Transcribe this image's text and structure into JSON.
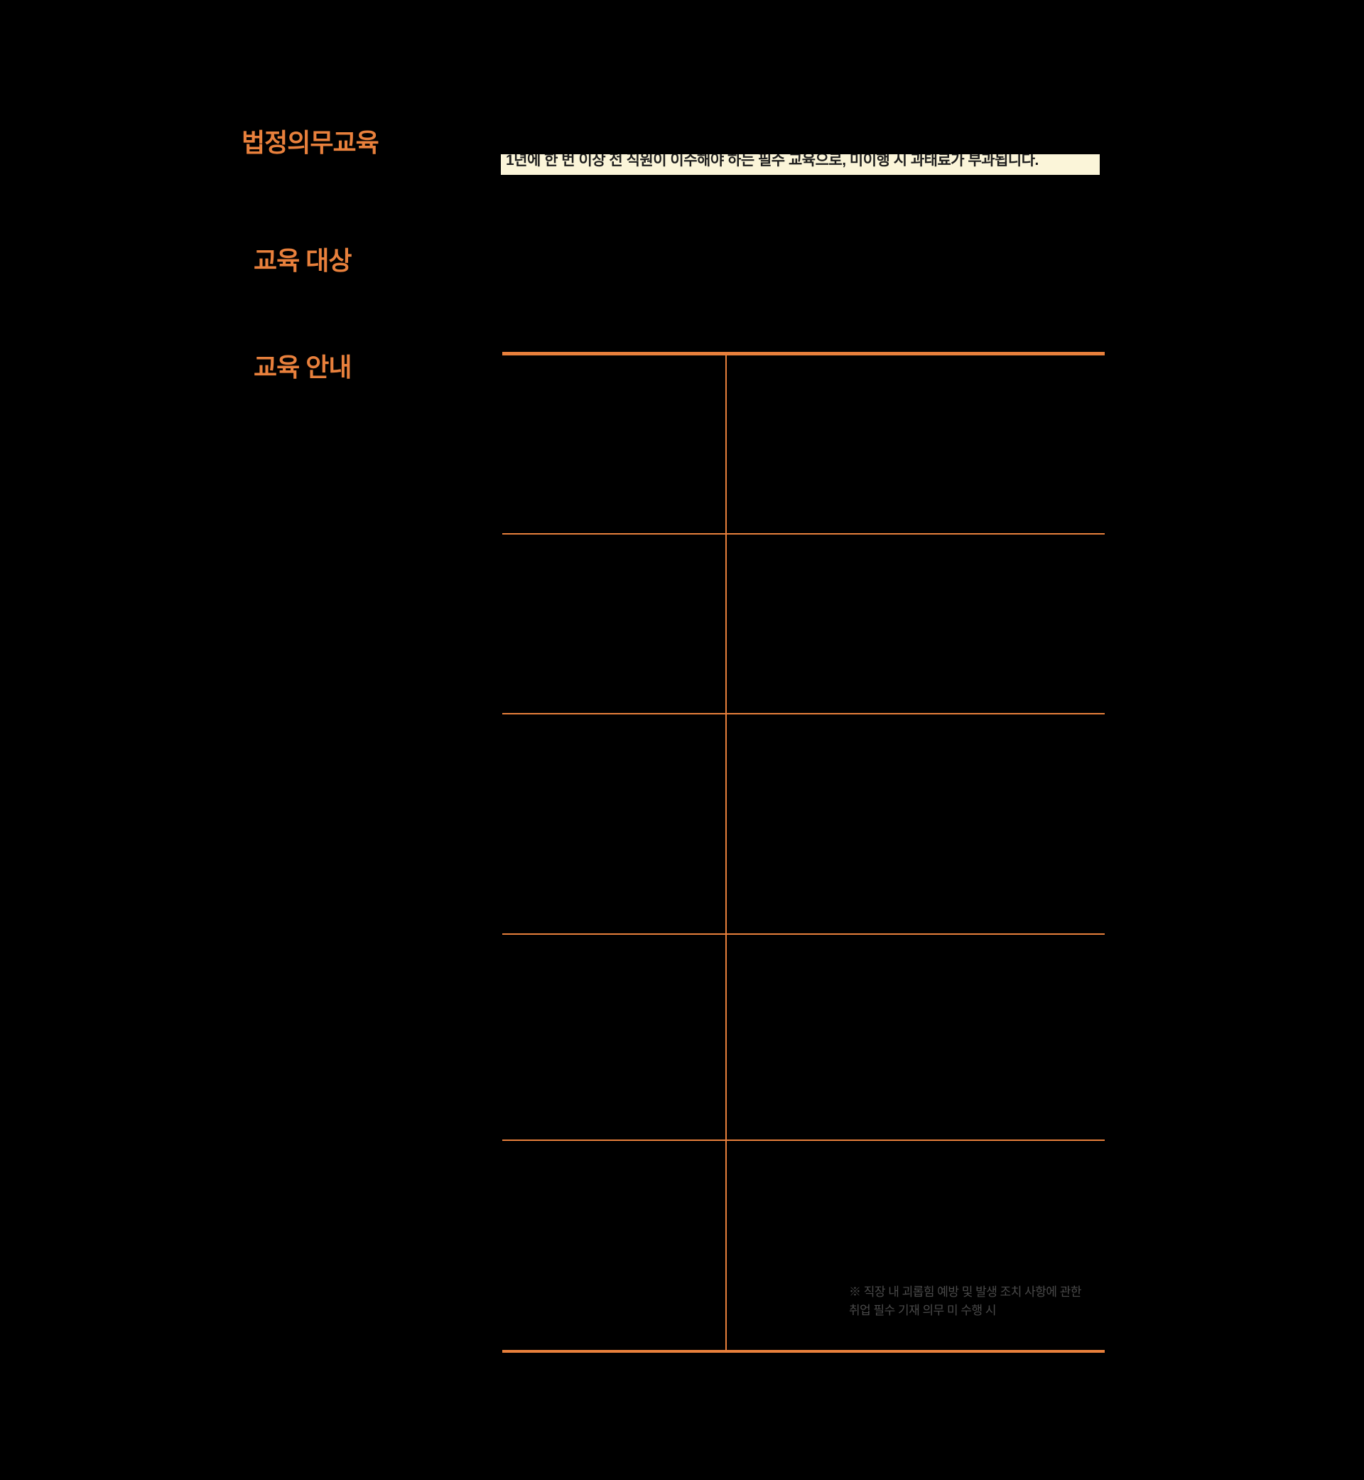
{
  "page": {
    "background_color": "#000000",
    "accent_orange": "#E8803C",
    "highlight_background": "#FBF5D9",
    "footnote_gray": "#4A4A4A"
  },
  "headings": {
    "main_title": "법정의무교육",
    "section_target": "교육 대상",
    "section_guide": "교육 안내"
  },
  "highlight": {
    "text": "1년에 한 번 이상 전 직원이 이수해야 하는 필수 교육으로, 미이행 시 과태료가 부과됩니다."
  },
  "table": {
    "rows": 5,
    "columns": 2,
    "footnote": {
      "line1": "※ 직장 내 괴롭힘 예방 및 발생 조치 사항에 관한",
      "line2": "취업 필수 기재 의무 미 수행 시"
    }
  }
}
